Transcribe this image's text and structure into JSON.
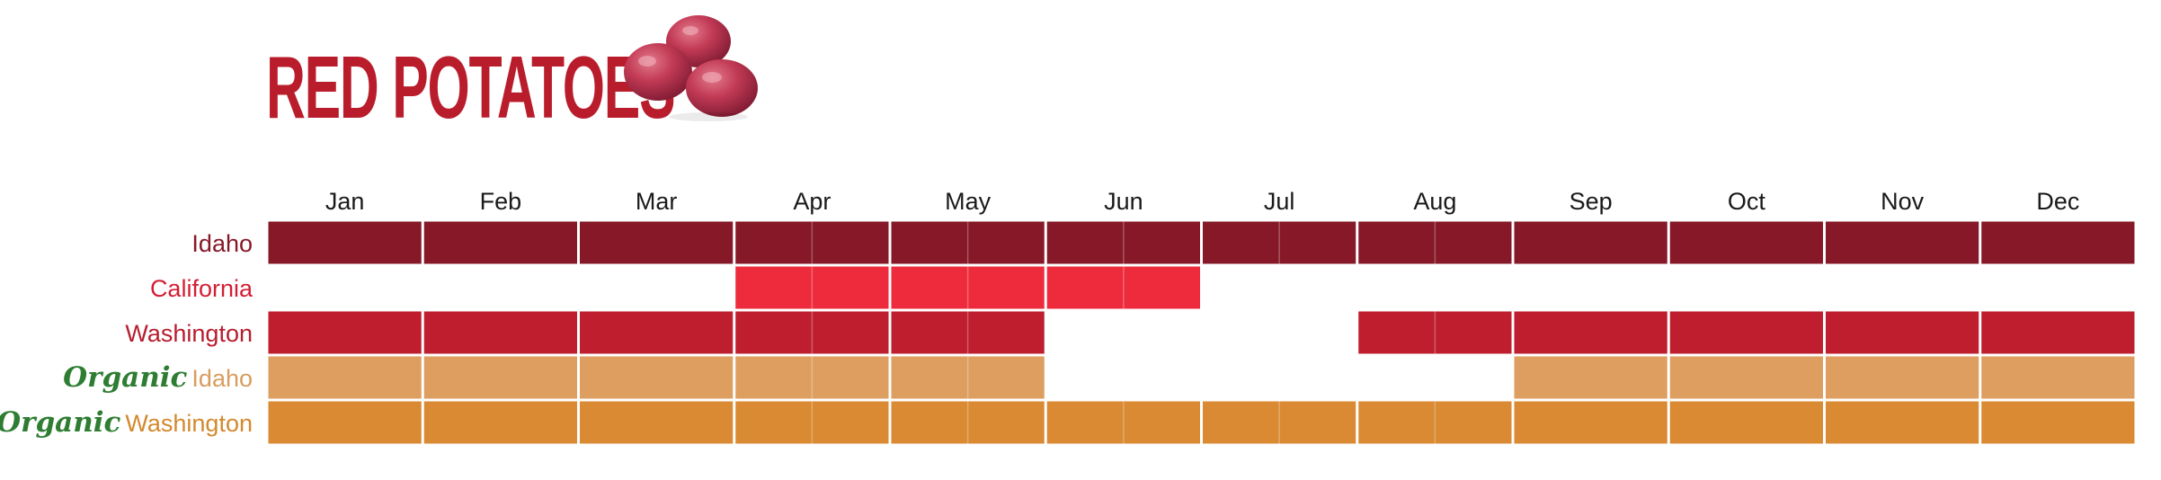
{
  "header": {
    "title": "RED POTATOES",
    "image_icon": "red-potatoes-photo"
  },
  "chart_data": {
    "type": "heatmap",
    "title": "RED POTATOES",
    "categories": [
      "Jan",
      "Feb",
      "Mar",
      "Apr",
      "May",
      "Jun",
      "Jul",
      "Aug",
      "Sep",
      "Oct",
      "Nov",
      "Dec"
    ],
    "half_month_split_months": [
      "Apr",
      "May",
      "Jun",
      "Jul",
      "Aug"
    ],
    "series": [
      {
        "name": "Idaho",
        "prefix": "",
        "label_color": "#861827",
        "fill_color": "#861827",
        "available": [
          1,
          1,
          1,
          1,
          1,
          1,
          1,
          1,
          1,
          1,
          1,
          1
        ]
      },
      {
        "name": "California",
        "prefix": "",
        "label_color": "#d41e34",
        "fill_color": "#ee2b3c",
        "available": [
          0,
          0,
          0,
          1,
          1,
          1,
          0,
          0,
          0,
          0,
          0,
          0
        ]
      },
      {
        "name": "Washington",
        "prefix": "",
        "label_color": "#b81d2e",
        "fill_color": "#be1e2e",
        "available": [
          1,
          1,
          1,
          1,
          1,
          0,
          0,
          1,
          1,
          1,
          1,
          1
        ]
      },
      {
        "name": "Idaho",
        "prefix": "Organic",
        "label_color": "#d89d5e",
        "fill_color": "#dd9e60",
        "available": [
          1,
          1,
          1,
          1,
          1,
          0,
          0,
          0,
          1,
          1,
          1,
          1
        ]
      },
      {
        "name": "Washington",
        "prefix": "Organic",
        "label_color": "#d3892e",
        "fill_color": "#d98a33",
        "available": [
          1,
          1,
          1,
          1,
          1,
          1,
          1,
          1,
          1,
          1,
          1,
          1
        ]
      }
    ],
    "organic_color": "#2e7d32",
    "grid": false,
    "legend": "none"
  }
}
